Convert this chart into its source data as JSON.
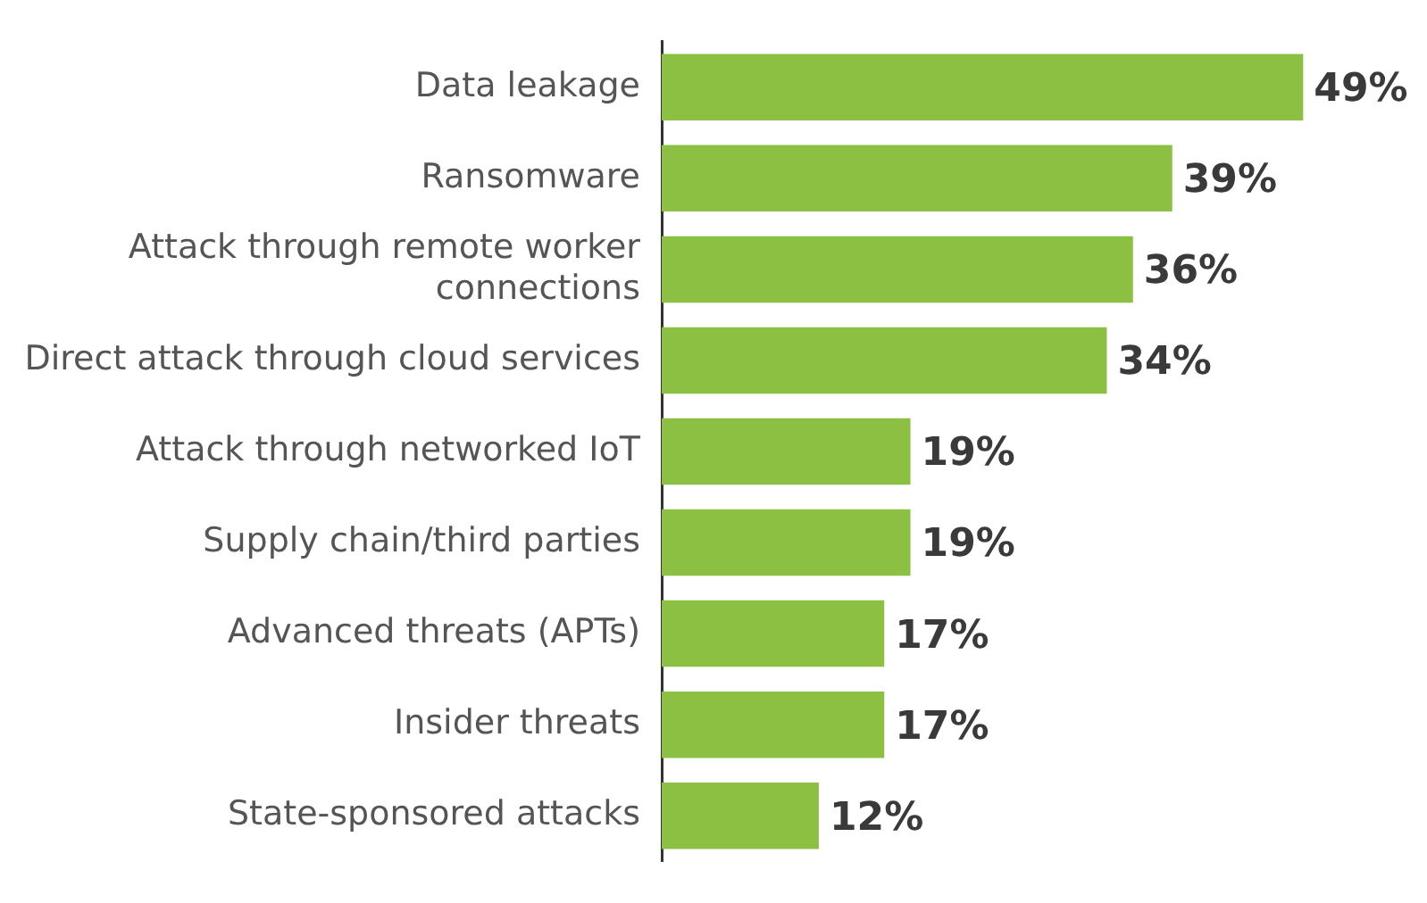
{
  "chart_data": {
    "type": "bar",
    "orientation": "horizontal",
    "categories": [
      "Data leakage",
      "Ransomware",
      "Attack through remote worker connections",
      "Direct attack through cloud services",
      "Attack through networked IoT",
      "Supply chain/third parties",
      "Advanced threats (APTs)",
      "Insider threats",
      "State-sponsored attacks"
    ],
    "values": [
      49,
      39,
      36,
      34,
      19,
      19,
      17,
      17,
      12
    ],
    "value_labels": [
      "49%",
      "39%",
      "36%",
      "34%",
      "19%",
      "19%",
      "17%",
      "17%",
      "12%"
    ],
    "color": "#8cc042",
    "tick_labels": "y"
  }
}
